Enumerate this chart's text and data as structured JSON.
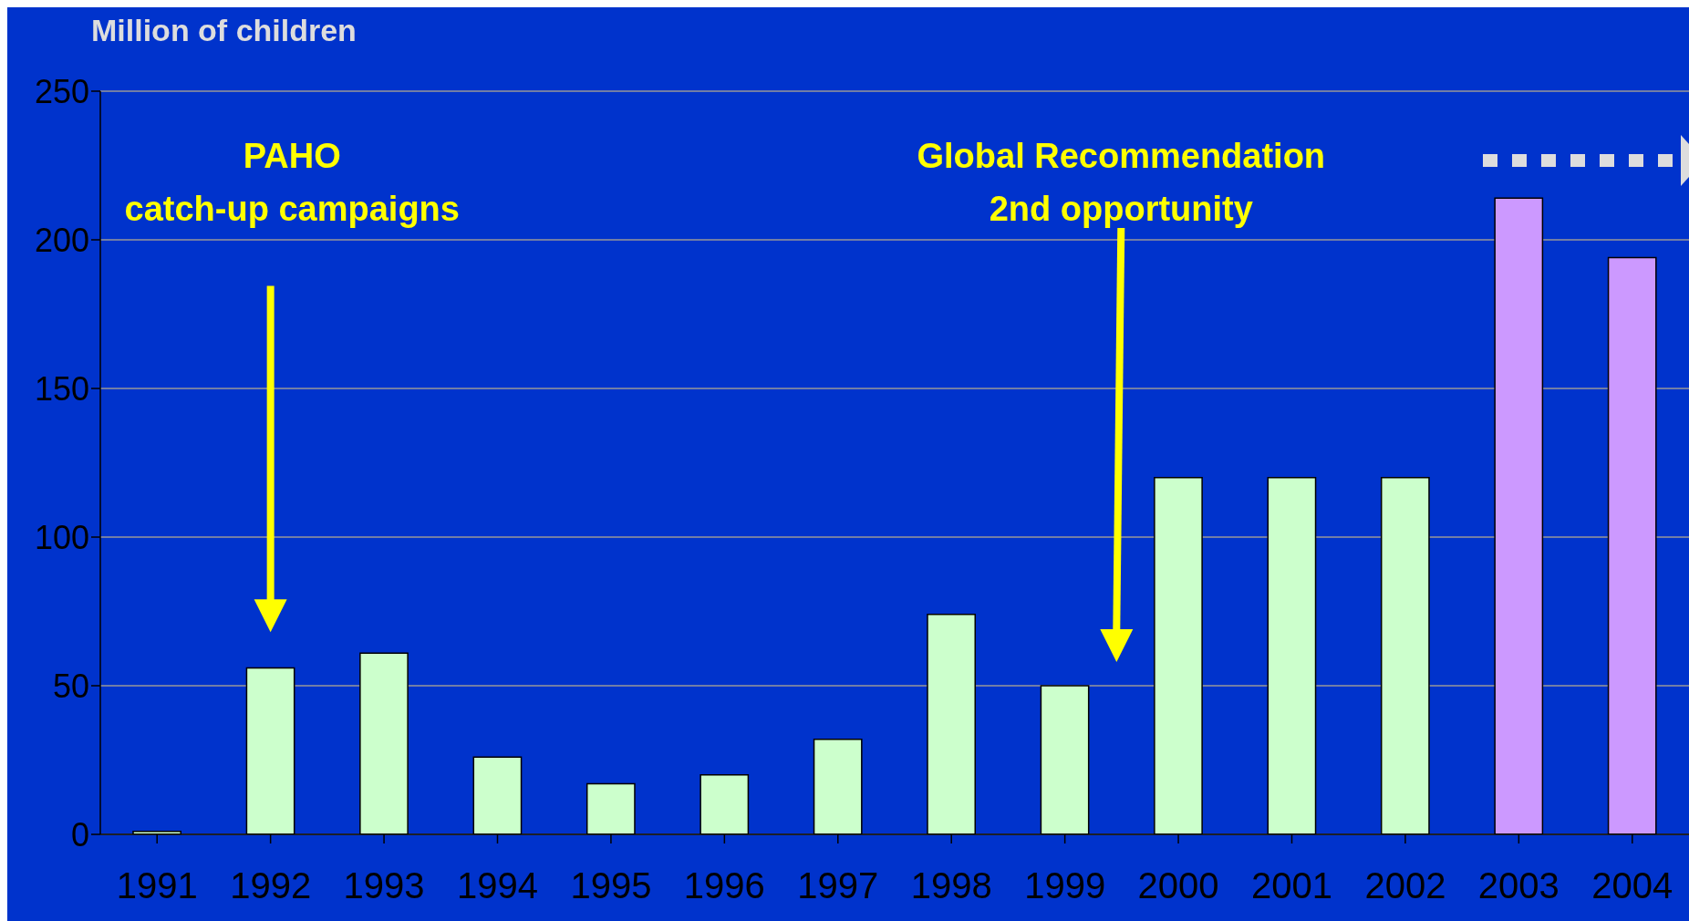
{
  "chart_data": {
    "type": "bar",
    "ylabel": "Million of children",
    "categories": [
      "1991",
      "1992",
      "1993",
      "1994",
      "1995",
      "1996",
      "1997",
      "1998",
      "1999",
      "2000",
      "2001",
      "2002",
      "2003",
      "2004"
    ],
    "values": [
      1,
      56,
      61,
      26,
      17,
      20,
      32,
      74,
      50,
      120,
      120,
      120,
      214,
      194
    ],
    "colors": [
      "#ccffcc",
      "#ccffcc",
      "#ccffcc",
      "#ccffcc",
      "#ccffcc",
      "#ccffcc",
      "#ccffcc",
      "#ccffcc",
      "#ccffcc",
      "#ccffcc",
      "#ccffcc",
      "#ccffcc",
      "#cc99ff",
      "#cc99ff"
    ],
    "ylim": [
      0,
      250
    ],
    "yticks": [
      0,
      50,
      100,
      150,
      200,
      250
    ],
    "grid": "y",
    "annotations": [
      "PAHO\ncatch-up campaigns",
      "Global Recommendation\n2nd opportunity"
    ]
  }
}
